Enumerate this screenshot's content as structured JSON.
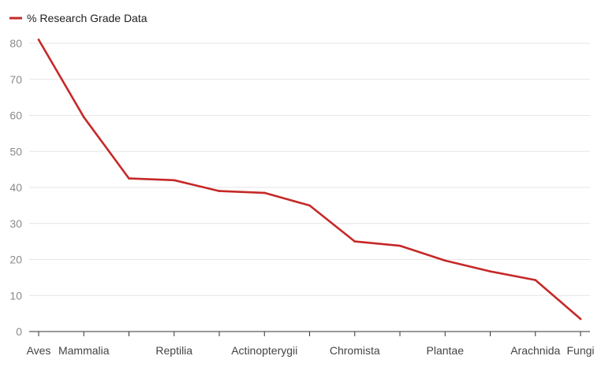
{
  "chart_data": {
    "type": "line",
    "title": "",
    "xlabel": "",
    "ylabel": "",
    "legend_position": "top-left",
    "grid": true,
    "ylim": [
      0,
      80
    ],
    "yticks": [
      0,
      10,
      20,
      30,
      40,
      50,
      60,
      70,
      80
    ],
    "categories": [
      "Aves",
      "Mammalia",
      "",
      "Reptilia",
      "",
      "Actinopterygii",
      "",
      "Chromista",
      "",
      "Plantae",
      "",
      "Arachnida",
      "Fungi"
    ],
    "series": [
      {
        "name": "% Research Grade Data",
        "color": "#c62828",
        "values": [
          81,
          59.5,
          42.5,
          42,
          39,
          38.5,
          35,
          25,
          23.8,
          19.7,
          16.7,
          14.3,
          3.5
        ]
      }
    ]
  }
}
